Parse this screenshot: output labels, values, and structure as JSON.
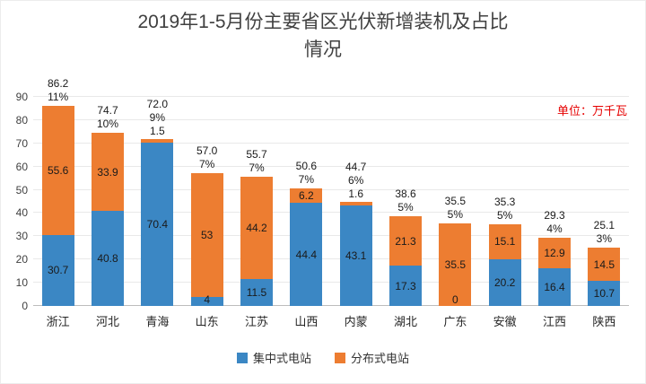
{
  "title": "2019年1-5月份主要省区光伏新增装机及占比\n情况",
  "unit_label": "单位：万千瓦",
  "colors": {
    "centralized_blue": "#3b87c4",
    "distributed_orange": "#ed7d31",
    "unit_label_red": "#e60000"
  },
  "legend": [
    {
      "label": "集中式电站",
      "color": "#3b87c4"
    },
    {
      "label": "分布式电站",
      "color": "#ed7d31"
    }
  ],
  "chart_data": {
    "type": "bar",
    "stacked": true,
    "title": "2019年1-5月份主要省区光伏新增装机及占比情况",
    "unit": "万千瓦",
    "categories": [
      "浙江",
      "河北",
      "青海",
      "山东",
      "江苏",
      "山西",
      "内蒙",
      "湖北",
      "广东",
      "安徽",
      "江西",
      "陕西"
    ],
    "series": [
      {
        "name": "集中式电站",
        "color": "#3b87c4",
        "values": [
          30.7,
          40.8,
          70.4,
          4,
          11.5,
          44.4,
          43.1,
          17.3,
          0,
          20.2,
          16.4,
          10.7
        ],
        "labels": [
          "30.7",
          "40.8",
          "70.4",
          "4",
          "11.5",
          "44.4",
          "43.1",
          "17.3",
          "0",
          "20.2",
          "16.4",
          "10.7"
        ]
      },
      {
        "name": "分布式电站",
        "color": "#ed7d31",
        "values": [
          55.6,
          33.9,
          1.5,
          53,
          44.2,
          6.2,
          1.6,
          21.3,
          35.5,
          15.1,
          12.9,
          14.5
        ],
        "labels": [
          "55.6",
          "33.9",
          "1.5",
          "53",
          "44.2",
          "6.2",
          "1.6",
          "21.3",
          "35.5",
          "15.1",
          "12.9",
          "14.5"
        ]
      }
    ],
    "totals": [
      86.2,
      74.7,
      72.0,
      57.0,
      55.7,
      50.6,
      44.7,
      38.6,
      35.5,
      35.3,
      29.3,
      25.1
    ],
    "total_labels": [
      "86.2",
      "74.7",
      "72.0",
      "57.0",
      "55.7",
      "50.6",
      "44.7",
      "38.6",
      "35.5",
      "35.3",
      "29.3",
      "25.1"
    ],
    "percent_labels": [
      "11%",
      "10%",
      "9%",
      "7%",
      "7%",
      "7%",
      "6%",
      "5%",
      "5%",
      "5%",
      "4%",
      "3%"
    ],
    "y_ticks": [
      0,
      10,
      20,
      30,
      40,
      50,
      60,
      70,
      80,
      90
    ],
    "ylim": [
      0,
      90
    ],
    "grid": true,
    "legend_position": "bottom"
  }
}
